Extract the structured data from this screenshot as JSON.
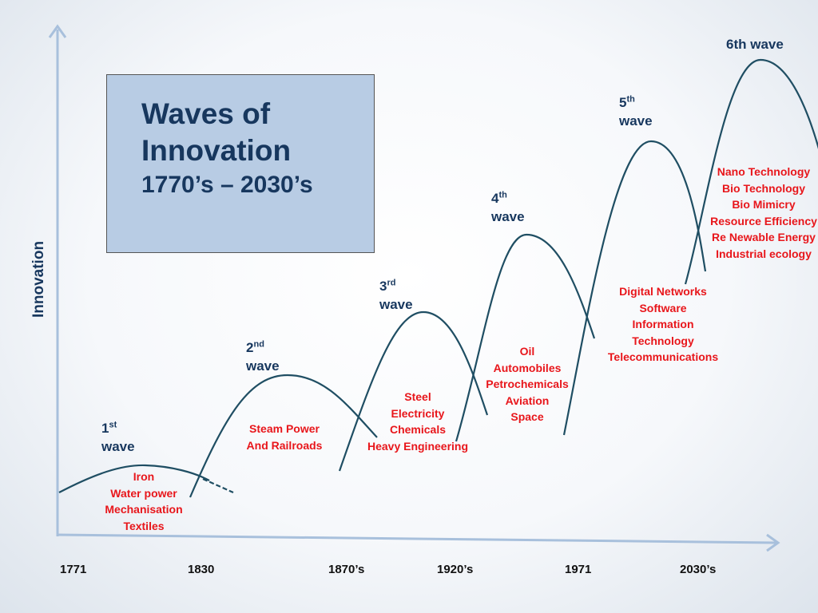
{
  "title": {
    "line1": "Waves of",
    "line2": "Innovation",
    "range": "1770’s – 2030’s"
  },
  "y_axis_label": "Innovation",
  "colors": {
    "curve": "#1f4e63",
    "axis": "#a8c0dc",
    "wave_label": "#17375e",
    "technology_text": "#e8161b",
    "title_box": "#b8cce4"
  },
  "waves": [
    {
      "num": "1",
      "suffix": "st",
      "word": "wave",
      "technologies": [
        "Iron",
        "Water power",
        "Mechanisation",
        "Textiles"
      ]
    },
    {
      "num": "2",
      "suffix": "nd",
      "word": "wave",
      "technologies": [
        "Steam Power",
        "And Railroads"
      ]
    },
    {
      "num": "3",
      "suffix": "rd",
      "word": "wave",
      "technologies": [
        "Steel",
        "Electricity",
        "Chemicals",
        "Heavy Engineering"
      ]
    },
    {
      "num": "4",
      "suffix": "th",
      "word": "wave",
      "technologies": [
        "Oil",
        "Automobiles",
        "Petrochemicals",
        "Aviation",
        "Space"
      ]
    },
    {
      "num": "5",
      "suffix": "th",
      "word": "wave",
      "technologies": [
        "Digital Networks",
        "Software",
        "Information",
        "Technology",
        "Telecommunications"
      ]
    },
    {
      "label": "6th wave",
      "technologies": [
        "Nano Technology",
        "Bio Technology",
        "Bio Mimicry",
        "Resource Efficiency",
        "Re Newable Energy",
        "Industrial ecology"
      ]
    }
  ],
  "years": [
    "1771",
    "1830",
    "1870’s",
    "1920’s",
    "1971",
    "2030’s"
  ]
}
